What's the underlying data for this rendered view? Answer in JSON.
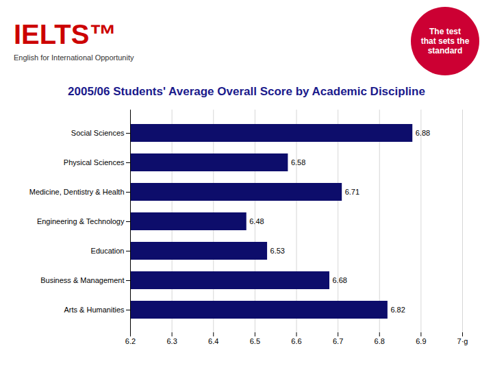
{
  "chart_data": {
    "type": "bar",
    "orientation": "horizontal",
    "title": "2005/06 Students' Average Overall Score by Academic Discipline",
    "categories": [
      "Social Sciences",
      "Physical Sciences",
      "Medicine, Dentistry & Health",
      "Engineering & Technology",
      "Education",
      "Business & Management",
      "Arts & Humanities"
    ],
    "values": [
      6.88,
      6.58,
      6.71,
      6.48,
      6.53,
      6.68,
      6.82
    ],
    "color": "#0d0d6b",
    "xlim": [
      6.2,
      7.0
    ],
    "xticks": [
      6.2,
      6.3,
      6.4,
      6.5,
      6.6,
      6.7,
      6.8,
      6.9,
      {
        "value": 7.0,
        "label": "7·g"
      }
    ],
    "grid": true,
    "data_labels": true,
    "annotations": [
      "IELTS™",
      "English for International Opportunity",
      "The test",
      "that sets the",
      "standard"
    ]
  }
}
